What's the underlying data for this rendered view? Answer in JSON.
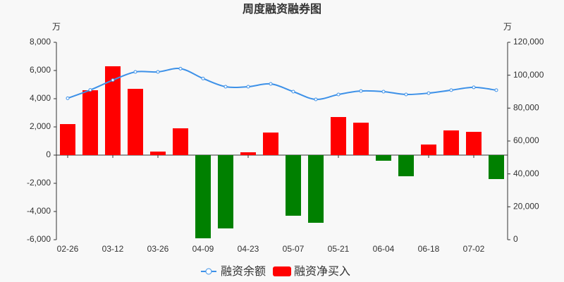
{
  "chart_data": {
    "type": "bar_line",
    "title": "周度融资融券图",
    "y_unit": "万",
    "y2_unit": "万",
    "categories": [
      "02-26",
      null,
      "03-12",
      null,
      "03-26",
      null,
      "04-09",
      null,
      "04-23",
      null,
      "05-07",
      null,
      "05-21",
      null,
      "06-04",
      null,
      "06-18",
      null,
      "07-02",
      null
    ],
    "series": [
      {
        "name": "融资余额",
        "type": "line",
        "axis": "y2",
        "color": "#3d91e8",
        "values": [
          86000,
          91000,
          97000,
          102000,
          102000,
          104000,
          98000,
          93000,
          93000,
          94700,
          90000,
          85300,
          88300,
          90400,
          90000,
          88300,
          89100,
          90900,
          92600,
          90900
        ]
      },
      {
        "name": "融资净买入",
        "type": "bar",
        "axis": "y",
        "color": "#ff0000",
        "negative_color": "#008000",
        "values": [
          2200,
          4600,
          6300,
          4700,
          250,
          1900,
          -5900,
          -5200,
          200,
          1600,
          -4300,
          -4800,
          2700,
          2300,
          -400,
          -1500,
          750,
          1750,
          1650,
          -1700
        ]
      }
    ],
    "ylim": [
      -6000,
      8000
    ],
    "yticks": [
      {
        "value": -6000,
        "label": "-6,000"
      },
      {
        "value": -4000,
        "label": "-4,000"
      },
      {
        "value": -2000,
        "label": "-2,000"
      },
      0,
      {
        "value": 2000,
        "label": "2,000"
      },
      {
        "value": 4000,
        "label": "4,000"
      },
      {
        "value": 6000,
        "label": "6,000"
      },
      {
        "value": 8000,
        "label": "8,000"
      }
    ],
    "y2lim": [
      0,
      120000
    ],
    "y2ticks": [
      0,
      {
        "value": 20000,
        "label": "20,000"
      },
      {
        "value": 40000,
        "label": "40,000"
      },
      {
        "value": 60000,
        "label": "60,000"
      },
      {
        "value": 80000,
        "label": "80,000"
      },
      {
        "value": 100000,
        "label": "100,000"
      },
      {
        "value": 120000,
        "label": "120,000"
      }
    ],
    "grid": false
  }
}
